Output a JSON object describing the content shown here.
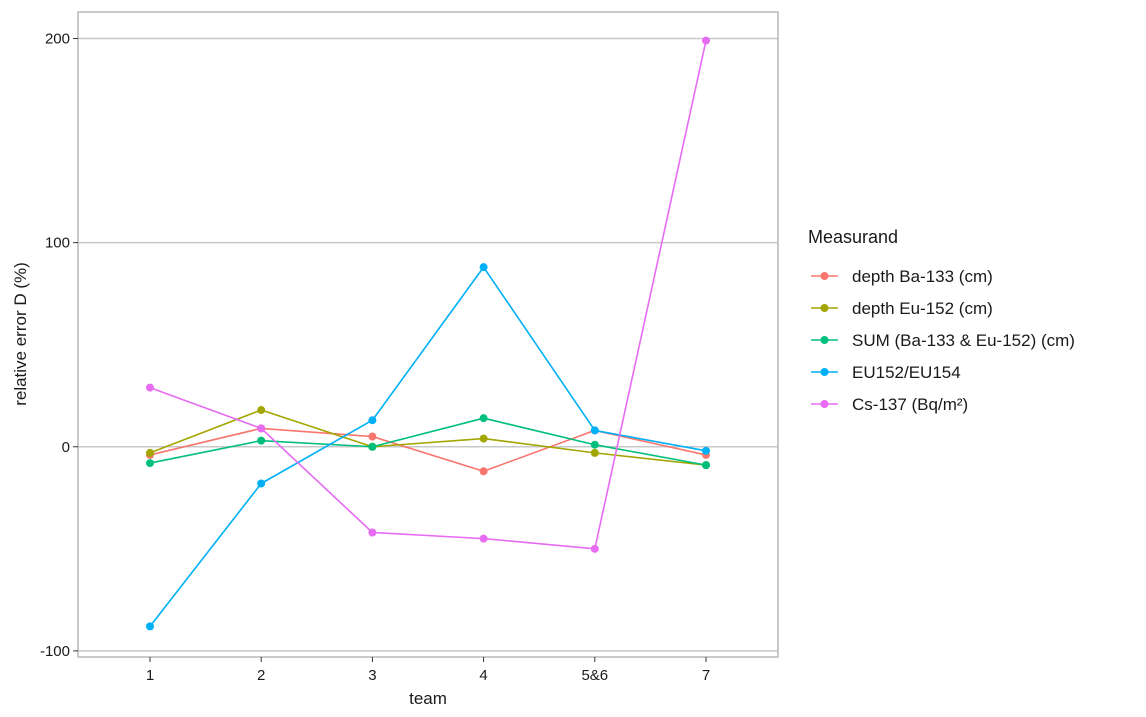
{
  "chart_data": {
    "type": "line",
    "xlabel": "team",
    "ylabel": "relative error D (%)",
    "categories": [
      "1",
      "2",
      "3",
      "4",
      "5&6",
      "7"
    ],
    "ylim": [
      -103,
      213
    ],
    "yticks": [
      -100,
      0,
      100,
      200
    ],
    "grid": "horizontal major lines",
    "legend_title": "Measurand",
    "legend_position": "right",
    "series": [
      {
        "name": "depth Ba-133 (cm)",
        "color": "#F8766D",
        "values": [
          -4,
          9,
          5,
          -12,
          8,
          -4
        ]
      },
      {
        "name": "depth Eu-152 (cm)",
        "color": "#A3A500",
        "values": [
          -3,
          18,
          0,
          4,
          -3,
          -9
        ]
      },
      {
        "name": "SUM (Ba-133 & Eu-152) (cm)",
        "color": "#00BF7D",
        "values": [
          -8,
          3,
          0,
          14,
          1,
          -9
        ]
      },
      {
        "name": "EU152/EU154",
        "color": "#00B0F6",
        "values": [
          -88,
          -18,
          13,
          88,
          8,
          -2
        ]
      },
      {
        "name": "Cs-137 (Bq/m²)",
        "color": "#E76BF3",
        "values": [
          29,
          9,
          -42,
          -45,
          -50,
          199
        ]
      }
    ]
  }
}
